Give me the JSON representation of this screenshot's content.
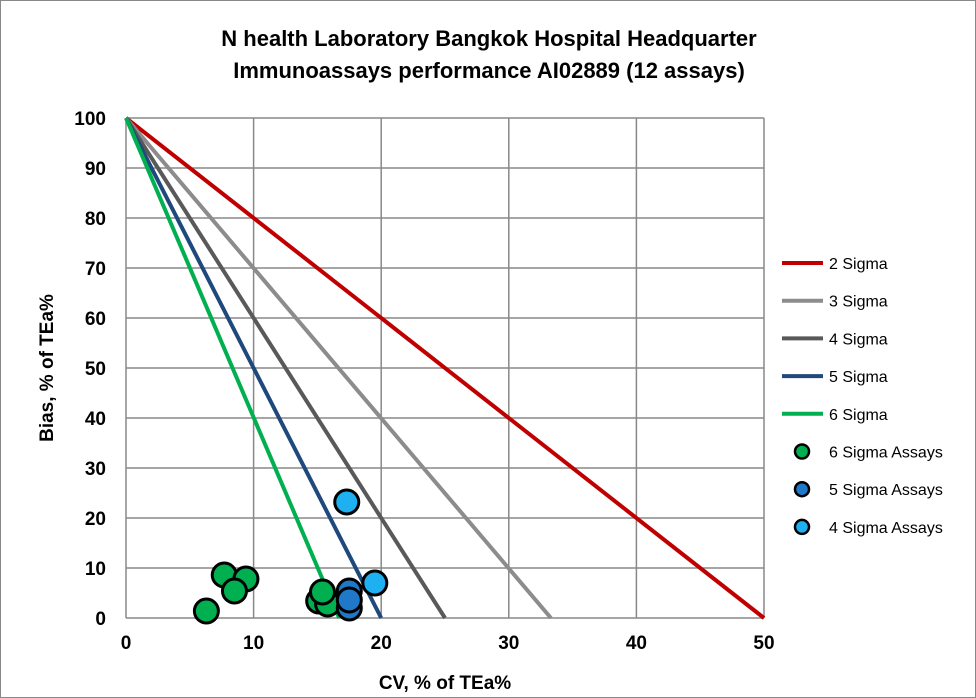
{
  "chart_data": {
    "type": "scatter",
    "title": [
      "N health Laboratory Bangkok Hospital Headquarter",
      "Immunoassays performance AI02889 (12 assays)"
    ],
    "xlabel": "CV, % of TEa%",
    "ylabel": "Bias, % of TEa%",
    "xlim": [
      0,
      50
    ],
    "ylim": [
      0,
      100
    ],
    "xticks": [
      0,
      10,
      20,
      30,
      40,
      50
    ],
    "yticks": [
      0,
      10,
      20,
      30,
      40,
      50,
      60,
      70,
      80,
      90,
      100
    ],
    "grid": true,
    "legend_position": "right",
    "lines": [
      {
        "name": "2 Sigma",
        "color": "#C00000",
        "x": [
          0,
          50
        ],
        "y": [
          100,
          0
        ]
      },
      {
        "name": "3 Sigma",
        "color": "#8C8C8C",
        "x": [
          0,
          33.3
        ],
        "y": [
          100,
          0
        ]
      },
      {
        "name": "4 Sigma",
        "color": "#595959",
        "x": [
          0,
          25
        ],
        "y": [
          100,
          0
        ]
      },
      {
        "name": "5 Sigma",
        "color": "#1F497D",
        "x": [
          0,
          20
        ],
        "y": [
          100,
          0
        ]
      },
      {
        "name": "6 Sigma",
        "color": "#00B050",
        "x": [
          0,
          16.7
        ],
        "y": [
          100,
          0
        ]
      }
    ],
    "series": [
      {
        "name": "6 Sigma Assays",
        "color": "#00B050",
        "points": [
          [
            6.3,
            1.4
          ],
          [
            7.7,
            8.6
          ],
          [
            9.4,
            7.8
          ],
          [
            8.5,
            5.4
          ],
          [
            15.1,
            3.4
          ],
          [
            15.8,
            2.8
          ],
          [
            15.4,
            5.2
          ]
        ]
      },
      {
        "name": "5 Sigma Assays",
        "color": "#1F78C8",
        "points": [
          [
            17.5,
            2.0
          ],
          [
            17.5,
            5.4
          ],
          [
            17.5,
            3.6
          ]
        ]
      },
      {
        "name": "4 Sigma Assays",
        "color": "#1EB0F0",
        "points": [
          [
            17.3,
            23.2
          ],
          [
            19.5,
            7.0
          ]
        ]
      }
    ]
  }
}
